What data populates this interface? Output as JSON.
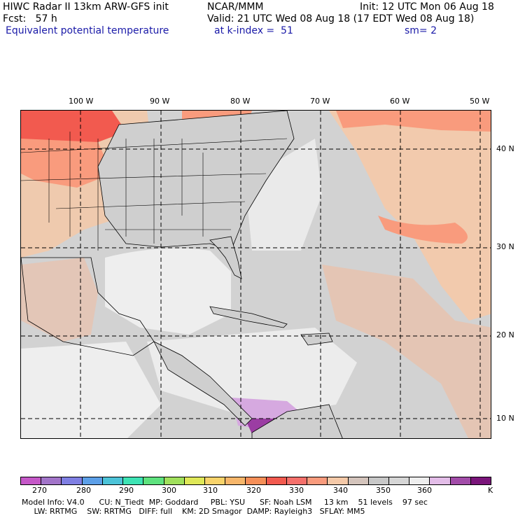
{
  "header": {
    "line1_left": "HIWC Radar II 13km ARW-GFS init",
    "line1_mid": "NCAR/MMM",
    "line1_right": "Init: 12 UTC Mon 06 Aug 18",
    "line2_left": "Fcst:   57 h",
    "line2_right": "Valid: 21 UTC Wed 08 Aug 18 (17 EDT Wed 08 Aug 18)",
    "line3_field": "Equivalent potential temperature",
    "line3_level": "at k-index =  51",
    "line3_smooth": "sm= 2"
  },
  "map": {
    "lon_labels": [
      "100 W",
      "90 W",
      "80 W",
      "70 W",
      "60 W",
      "50 W"
    ],
    "lat_labels": [
      "40 N",
      "30 N",
      "20 N",
      "10 N"
    ],
    "colors": {
      "land_border": "#000000",
      "grid_line": "#000000",
      "ocean_gray": "#d2d2d2",
      "warm_tan": "#f5c9a8",
      "hot_salmon": "#f99b7d",
      "hot_red": "#f25a4f",
      "cool_white": "#eeeeee",
      "mid_gray": "#bfbfbf",
      "lavender": "#d6a9e0",
      "purple": "#9b3da3"
    }
  },
  "colorbar": {
    "colors": [
      "#c558c8",
      "#a274c9",
      "#7f7fe3",
      "#5c9fe8",
      "#4cc3d8",
      "#3de3b4",
      "#5ee27e",
      "#a0e05c",
      "#dfe858",
      "#f8d36a",
      "#f7b66a",
      "#f58f58",
      "#f25a4f",
      "#f5706b",
      "#f99b7d",
      "#f5c9a8",
      "#d4c4bc",
      "#c8c8c8",
      "#d6d6d6",
      "#eeeeee",
      "#e3bde8",
      "#a24ca9",
      "#7a157a"
    ],
    "labels": [
      "270",
      "280",
      "290",
      "300",
      "310",
      "320",
      "330",
      "340",
      "350",
      "360",
      "K"
    ]
  },
  "footer": {
    "line1": "Model Info: V4.0      CU: N_Tiedt  MP: Goddard     PBL: YSU      SF: Noah LSM     13 km    51 levels    97 sec",
    "line2": "     LW: RRTMG    SW: RRTMG   DIFF: full    KM: 2D Smagor  DAMP: Rayleigh3   SFLAY: MM5"
  }
}
